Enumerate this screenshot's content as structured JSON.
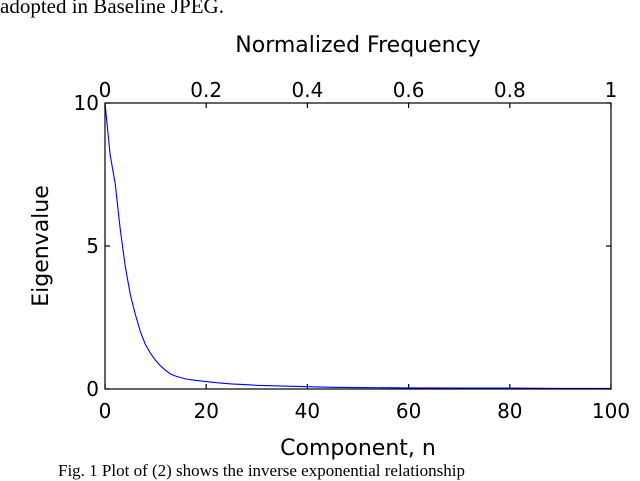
{
  "text_above": "adopted in Baseline JPEG.",
  "caption": "Fig. 1 Plot of (2) shows the inverse exponential relationship",
  "chart_data": {
    "type": "line",
    "title": "",
    "xlabel": "Component, n",
    "ylabel": "Eigenvalue",
    "x2label": "Normalized Frequency",
    "xlim": [
      0,
      100
    ],
    "ylim": [
      0,
      10
    ],
    "x2lim": [
      0,
      1
    ],
    "x_ticks": [
      "0",
      "20",
      "40",
      "60",
      "80",
      "100"
    ],
    "y_ticks": [
      "0",
      "5",
      "10"
    ],
    "x2_ticks": [
      "0",
      "0.2",
      "0.4",
      "0.6",
      "0.8",
      "1"
    ],
    "grid": false,
    "legend": "none",
    "series": [
      {
        "color": "#0000ff",
        "x": [
          0,
          1,
          2,
          3,
          4,
          5,
          6,
          7,
          8,
          9,
          10,
          11,
          12,
          13,
          14,
          15,
          16,
          18,
          20,
          22,
          25,
          28,
          30,
          35,
          40,
          45,
          50,
          60,
          70,
          80,
          90,
          100
        ],
        "y": [
          10.0,
          8.2,
          7.2,
          5.6,
          4.3,
          3.3,
          2.6,
          2.0,
          1.55,
          1.25,
          1.0,
          0.8,
          0.65,
          0.52,
          0.45,
          0.4,
          0.35,
          0.3,
          0.26,
          0.22,
          0.18,
          0.15,
          0.13,
          0.1,
          0.08,
          0.06,
          0.05,
          0.04,
          0.03,
          0.03,
          0.02,
          0.02
        ]
      }
    ]
  }
}
